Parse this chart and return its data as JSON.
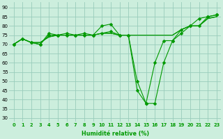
{
  "background_color": "#cceedd",
  "grid_color": "#99ccbb",
  "line_color": "#009900",
  "xlabel": "Humidité relative (%)",
  "ylim": [
    28,
    93
  ],
  "xlim": [
    -0.5,
    23.5
  ],
  "yticks": [
    30,
    35,
    40,
    45,
    50,
    55,
    60,
    65,
    70,
    75,
    80,
    85,
    90
  ],
  "lines": [
    {
      "y": [
        70,
        73,
        71,
        70,
        76,
        75,
        76,
        75,
        76,
        75,
        80,
        81,
        75,
        75,
        50,
        38,
        38,
        60,
        72,
        76,
        80,
        80,
        85,
        86
      ],
      "marker": true,
      "ms": 2.5
    },
    {
      "y": [
        70,
        73,
        71,
        70,
        75,
        75,
        75,
        75,
        75,
        75,
        76,
        77,
        75,
        75,
        45,
        38,
        60,
        72,
        72,
        78,
        80,
        84,
        85,
        86
      ],
      "marker": true,
      "ms": 2.5
    },
    {
      "y": [
        70,
        73,
        71,
        71,
        74,
        75,
        75,
        75,
        75,
        75,
        76,
        76,
        75,
        75,
        75,
        75,
        75,
        75,
        75,
        78,
        80,
        80,
        84,
        85
      ],
      "marker": false,
      "ms": 0
    },
    {
      "y": [
        70,
        73,
        71,
        71,
        74,
        75,
        75,
        75,
        75,
        75,
        76,
        76,
        75,
        75,
        75,
        75,
        75,
        75,
        75,
        78,
        80,
        80,
        84,
        85
      ],
      "marker": false,
      "ms": 0
    }
  ]
}
